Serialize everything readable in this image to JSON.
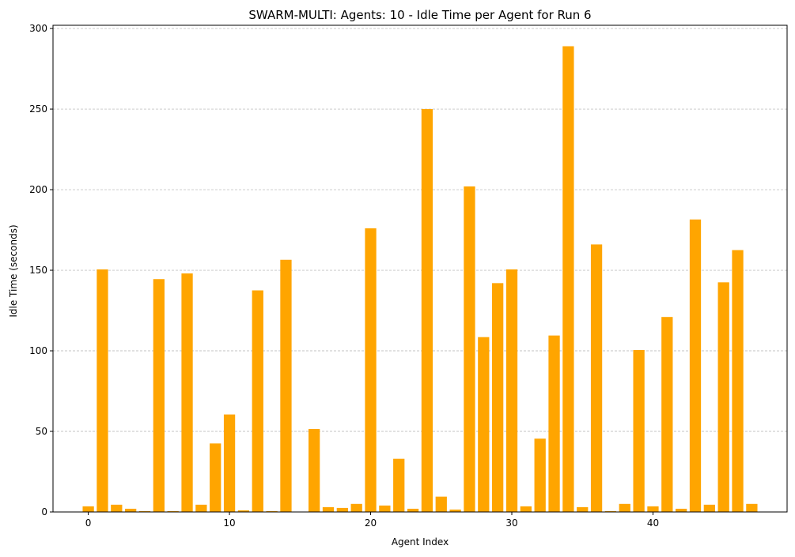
{
  "chart_data": {
    "type": "bar",
    "title": "SWARM-MULTI: Agents: 10 - Idle Time per Agent for Run 6",
    "xlabel": "Agent Index",
    "ylabel": "Idle Time (seconds)",
    "x": [
      0,
      1,
      2,
      3,
      4,
      5,
      6,
      7,
      8,
      9,
      10,
      11,
      12,
      13,
      14,
      15,
      16,
      17,
      18,
      19,
      20,
      21,
      22,
      23,
      24,
      25,
      26,
      27,
      28,
      29,
      30,
      31,
      32,
      33,
      34,
      35,
      36,
      37,
      38,
      39,
      40,
      41,
      42,
      43,
      44,
      45,
      46,
      47
    ],
    "values": [
      3.5,
      150.5,
      4.5,
      2,
      0.5,
      144.5,
      0.5,
      148,
      4.5,
      42.5,
      60.5,
      1,
      137.5,
      0.5,
      156.5,
      0,
      51.5,
      3,
      2.5,
      5,
      176,
      4,
      33,
      2,
      250,
      9.5,
      1.5,
      202,
      108.5,
      142,
      150.5,
      3.5,
      45.5,
      109.5,
      289,
      3,
      166,
      0.5,
      5,
      100.5,
      3.5,
      121,
      2,
      181.5,
      4.5,
      142.5,
      162.5,
      5
    ],
    "xlim": [
      -2.5,
      49.5
    ],
    "ylim": [
      0,
      302
    ],
    "xticks": [
      0,
      10,
      20,
      30,
      40
    ],
    "yticks": [
      0,
      50,
      100,
      150,
      200,
      250,
      300
    ],
    "bar_color": "#ffa500",
    "grid": "y-dashed"
  }
}
